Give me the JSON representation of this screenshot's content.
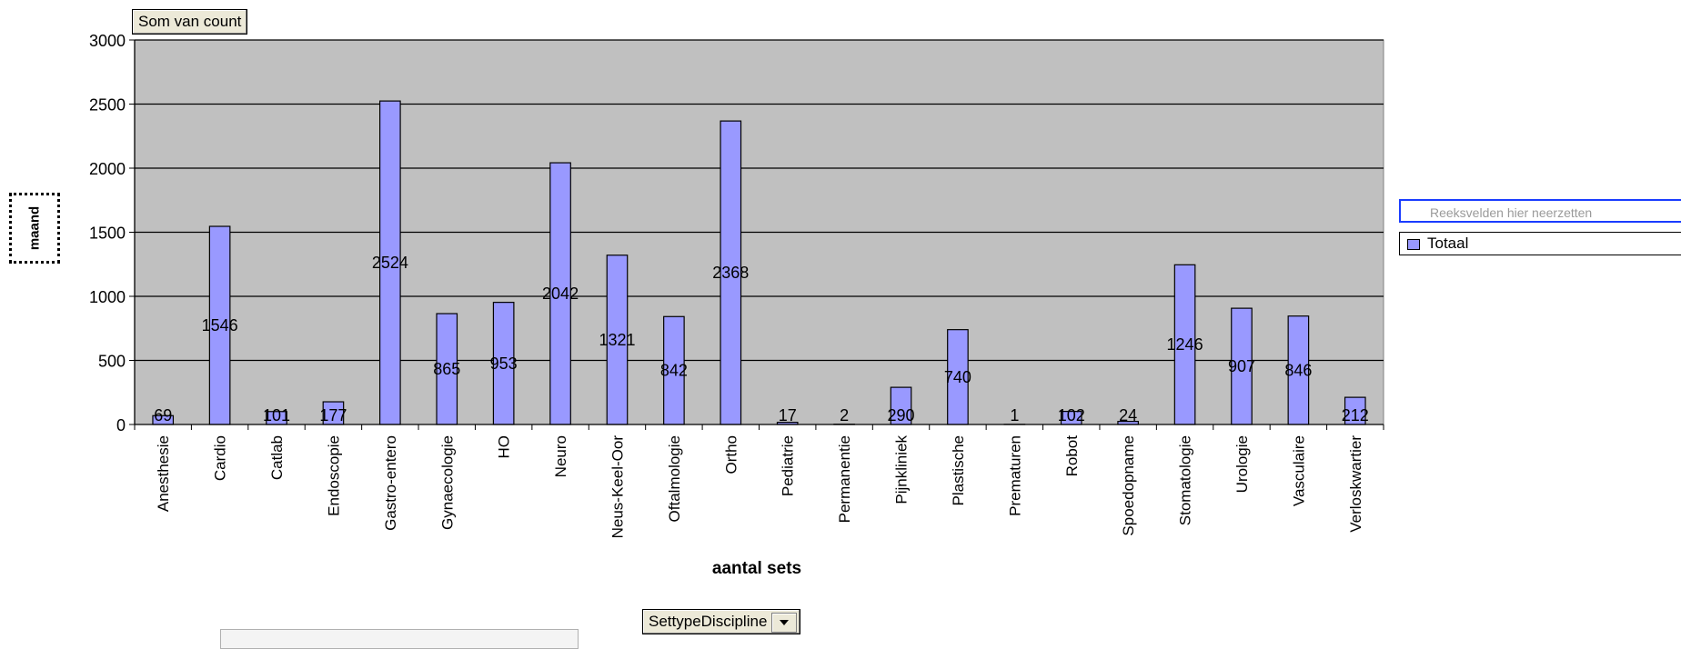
{
  "chart_data": {
    "type": "bar",
    "data_field": "Som van count",
    "row_field": "SettypeDiscipline",
    "categories": [
      "Anesthesie",
      "Cardio",
      "Catlab",
      "Endoscopie",
      "Gastro-entero",
      "Gynaecologie",
      "HO",
      "Neuro",
      "Neus-Keel-Oor",
      "Oftalmologie",
      "Ortho",
      "Pediatrie",
      "Permanentie",
      "Pijnkliniek",
      "Plastische",
      "Prematuren",
      "Robot",
      "Spoedopname",
      "Stomatologie",
      "Urologie",
      "Vasculaire",
      "Verloskwartier"
    ],
    "series": [
      {
        "name": "Totaal",
        "values": [
          69,
          1546,
          101,
          177,
          2524,
          865,
          953,
          2042,
          1321,
          842,
          2368,
          17,
          2,
          290,
          740,
          1,
          102,
          24,
          1246,
          907,
          846,
          212
        ]
      }
    ],
    "data_labels": [
      "69",
      "1546",
      "101",
      "177",
      "2524",
      "865",
      "953",
      "2042",
      "1321",
      "842",
      "2368",
      "17",
      "2",
      "290",
      "740",
      "1",
      "102",
      "24",
      "1246",
      "907",
      "846",
      "212"
    ],
    "xlabel": "aantal sets",
    "ylabel": "maand",
    "ylim": [
      0,
      3000
    ],
    "yticks": [
      "0",
      "500",
      "1000",
      "1500",
      "2000",
      "2500",
      "3000"
    ],
    "ytick_values": [
      0,
      500,
      1000,
      1500,
      2000,
      2500,
      3000
    ],
    "grid": true,
    "legend_position": "right",
    "legend": {
      "series_drop_text": "Reeksvelden hier neerzetten",
      "entries": [
        "Totaal"
      ]
    },
    "colors": {
      "plot_bg": "#c0c0c0",
      "bar": "#9999ff",
      "bar_border": "#000000",
      "grid": "#000000"
    }
  }
}
